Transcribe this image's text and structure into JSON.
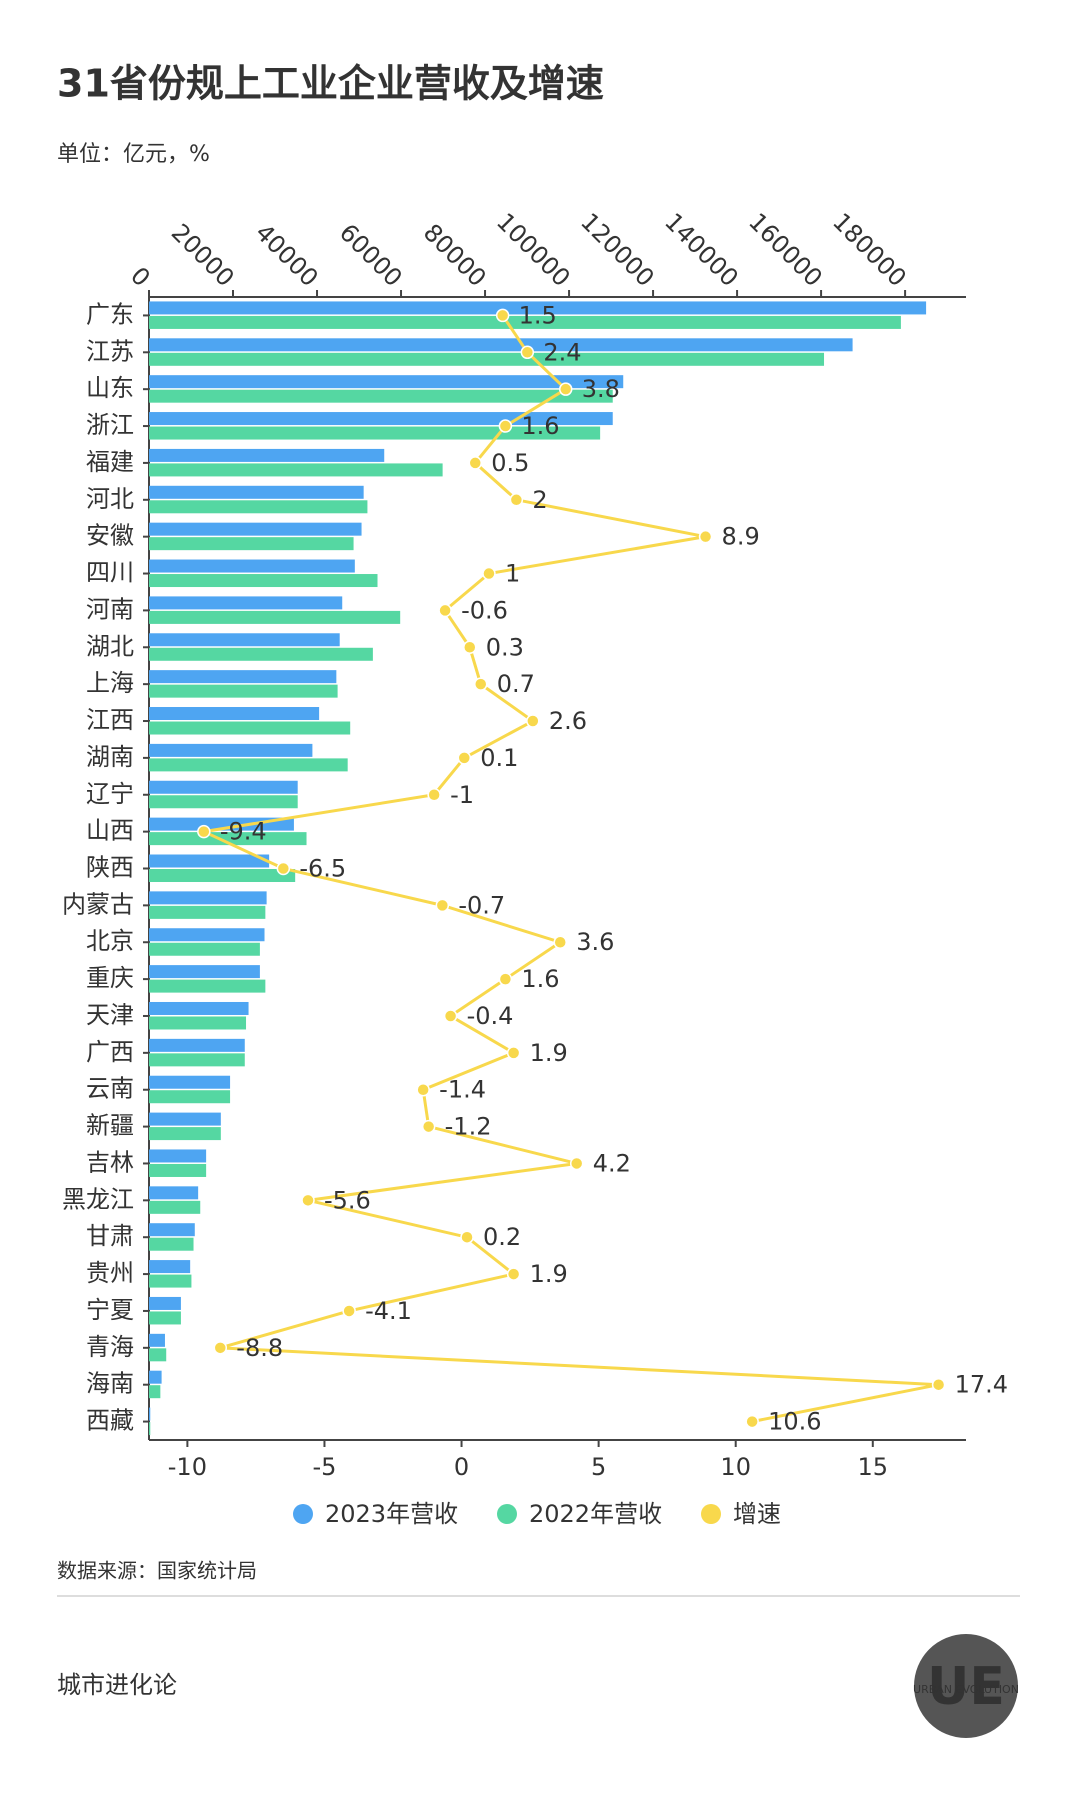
{
  "chart_data": {
    "type": "bar",
    "orientation": "horizontal",
    "title": "31省份规上工业企业营收及增速",
    "subtitle": "单位：亿元，%",
    "categories": [
      "广东",
      "江苏",
      "山东",
      "浙江",
      "福建",
      "河北",
      "安徽",
      "四川",
      "河南",
      "湖北",
      "上海",
      "江西",
      "湖南",
      "辽宁",
      "山西",
      "陕西",
      "内蒙古",
      "北京",
      "重庆",
      "天津",
      "广西",
      "云南",
      "新疆",
      "吉林",
      "黑龙江",
      "甘肃",
      "贵州",
      "宁夏",
      "青海",
      "海南",
      "西藏"
    ],
    "series": [
      {
        "name": "2023年营收",
        "color": "#4ea5f2",
        "values": [
          185000,
          167500,
          112900,
          110400,
          56000,
          51100,
          50600,
          49000,
          46000,
          45400,
          44600,
          40500,
          38900,
          35400,
          34500,
          28600,
          28000,
          27500,
          26400,
          23700,
          22800,
          19300,
          17100,
          13600,
          11700,
          10900,
          9800,
          7600,
          3800,
          3000,
          300
        ]
      },
      {
        "name": "2022年营收",
        "color": "#55d7a2",
        "values": [
          179000,
          160700,
          110400,
          107400,
          69900,
          52000,
          48700,
          54400,
          59800,
          53300,
          44900,
          47900,
          47300,
          35400,
          37500,
          34800,
          27700,
          26400,
          27700,
          23100,
          22800,
          19300,
          17100,
          13600,
          12200,
          10600,
          10100,
          7600,
          4100,
          2700,
          300
        ]
      },
      {
        "name": "增速",
        "color": "#f8d84c",
        "axis": "x2",
        "values": [
          1.5,
          2.4,
          3.8,
          1.6,
          0.5,
          2,
          8.9,
          1,
          -0.6,
          0.3,
          0.7,
          2.6,
          0.1,
          -1,
          -9.4,
          -6.5,
          -0.7,
          3.6,
          1.6,
          -0.4,
          1.9,
          -1.4,
          -1.2,
          4.2,
          -5.6,
          0.2,
          1.9,
          -4.1,
          -8.8,
          17.4,
          10.6
        ]
      }
    ],
    "xlim": [
      0,
      194500
    ],
    "xticks": [
      0,
      20000,
      40000,
      60000,
      80000,
      100000,
      120000,
      140000,
      160000,
      180000
    ],
    "x2lim": [
      -11.4,
      18.4
    ],
    "x2ticks": [
      -10,
      -5,
      0,
      5,
      10,
      15
    ],
    "legend": "bottom",
    "source": "数据来源：国家统计局"
  },
  "footer": {
    "brand": "城市进化论",
    "logo": "UE",
    "logo_sub": "URBAN EVOLUTION"
  }
}
